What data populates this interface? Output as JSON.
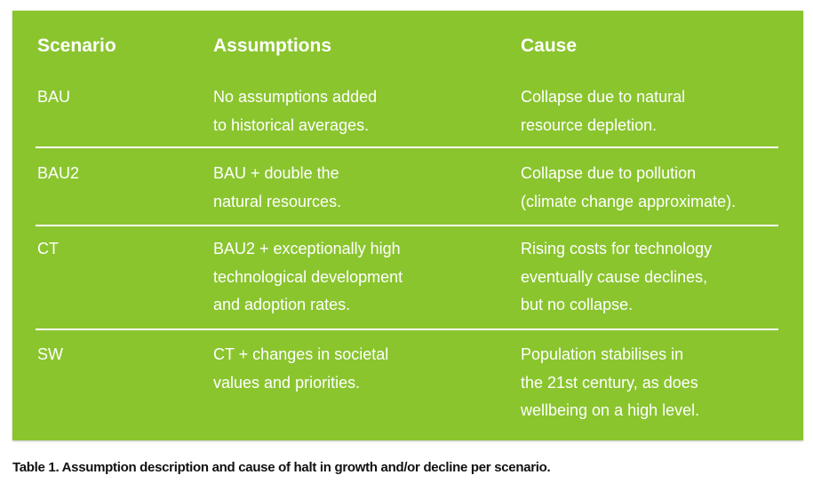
{
  "table": {
    "headers": [
      "Scenario",
      "Assumptions",
      "Cause"
    ],
    "rows": [
      {
        "scenario": "BAU",
        "assumptions": [
          "No assumptions added",
          "to historical averages."
        ],
        "cause": [
          "Collapse due to natural",
          "resource depletion."
        ]
      },
      {
        "scenario": "BAU2",
        "assumptions": [
          "BAU + double the",
          "natural resources."
        ],
        "cause": [
          "Collapse due to pollution",
          "(climate change approximate)."
        ]
      },
      {
        "scenario": "CT",
        "assumptions": [
          "BAU2 + exceptionally high",
          "technological development",
          "and adoption rates."
        ],
        "cause": [
          "Rising costs for technology",
          "eventually cause declines,",
          "but no collapse."
        ]
      },
      {
        "scenario": "SW",
        "assumptions": [
          "CT + changes in societal",
          "values and priorities."
        ],
        "cause": [
          "Population stabilises in",
          "the 21st century, as does",
          "wellbeing on a high level."
        ]
      }
    ],
    "background_color": "#8ac52e"
  },
  "caption": "Table 1. Assumption description and cause of halt in growth and/or decline per scenario."
}
